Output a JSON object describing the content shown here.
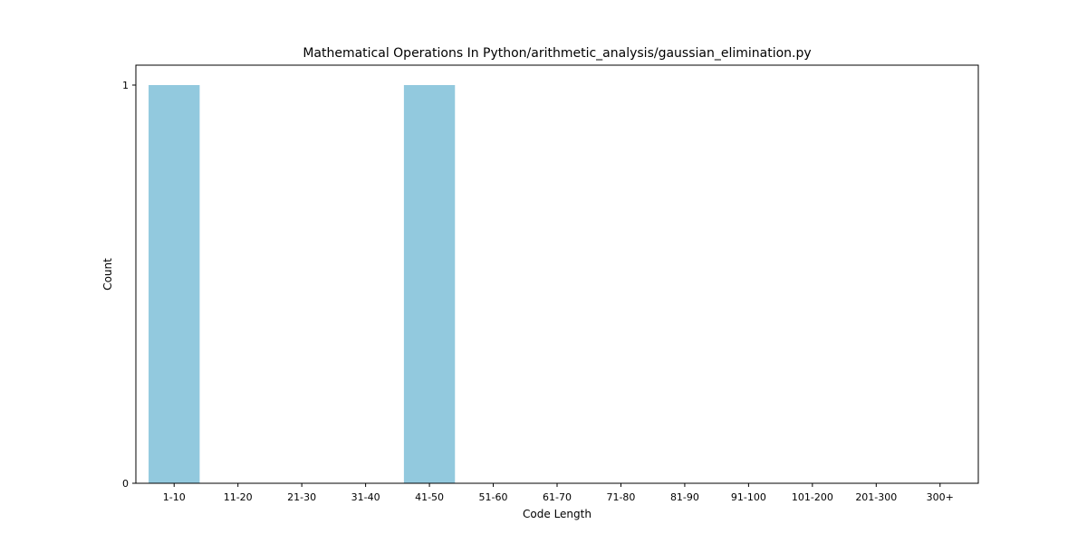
{
  "chart_data": {
    "type": "bar",
    "title": "Mathematical Operations In Python/arithmetic_analysis/gaussian_elimination.py",
    "xlabel": "Code Length",
    "ylabel": "Count",
    "categories": [
      "1-10",
      "11-20",
      "21-30",
      "31-40",
      "41-50",
      "51-60",
      "61-70",
      "71-80",
      "81-90",
      "91-100",
      "101-200",
      "201-300",
      "300+"
    ],
    "values": [
      1,
      0,
      0,
      0,
      1,
      0,
      0,
      0,
      0,
      0,
      0,
      0,
      0
    ],
    "yticks": [
      "0",
      "1"
    ],
    "ylim": [
      0,
      1.05
    ],
    "bar_color": "#92c9de",
    "grid": false,
    "legend": "none"
  }
}
